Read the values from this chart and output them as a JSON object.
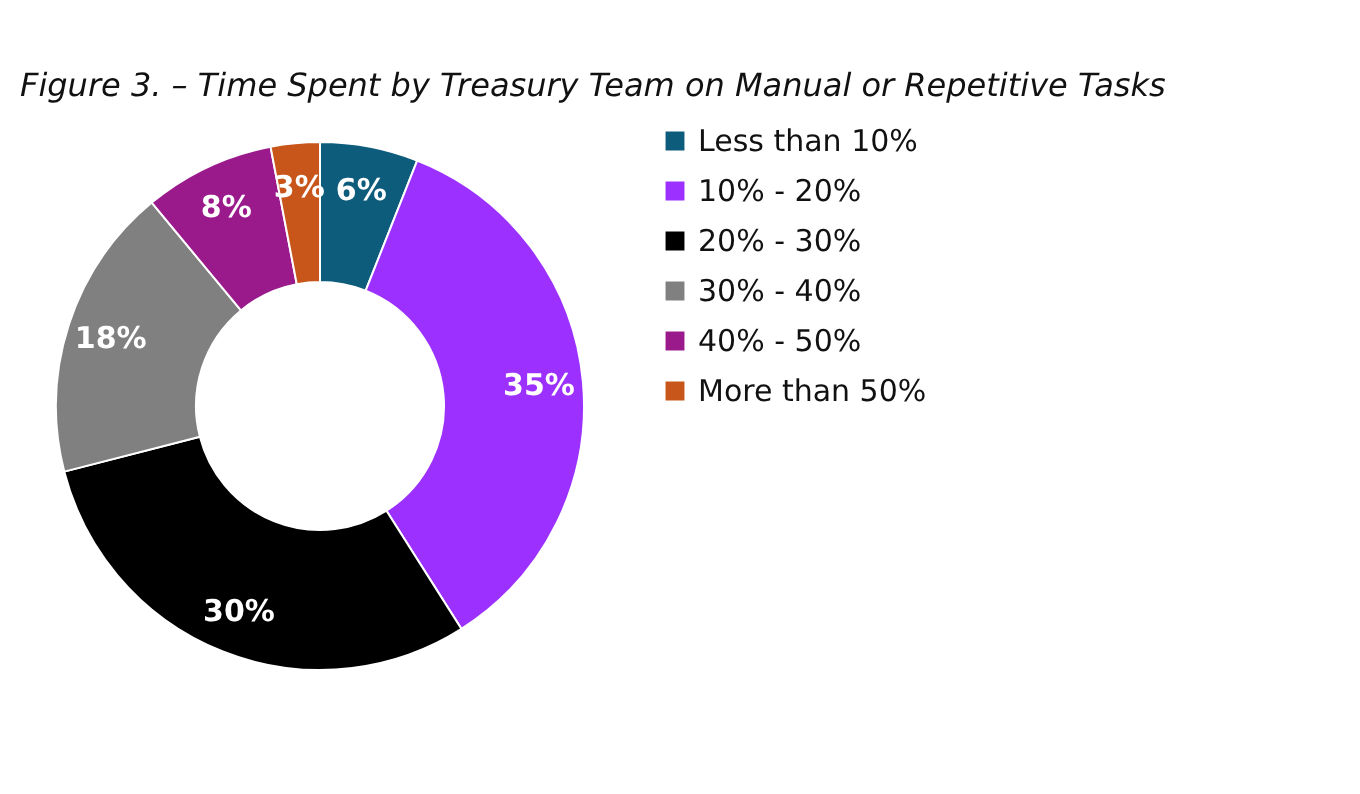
{
  "chart_data": {
    "type": "donut",
    "title": "Figure 3. – Time Spent by Treasury Team on Manual or Repetitive Tasks",
    "categories": [
      "Less than 10%",
      "10% - 20%",
      "20% - 30%",
      "30% - 40%",
      "40% - 50%",
      "More than 50%"
    ],
    "values": [
      6,
      35,
      30,
      18,
      8,
      3
    ],
    "colors": [
      "#0e5c7c",
      "#9b30ff",
      "#000000",
      "#808080",
      "#9a1a8c",
      "#c8561a"
    ],
    "value_labels": [
      "6%",
      "35%",
      "30%",
      "18%",
      "8%",
      "3%"
    ],
    "legend": "right"
  }
}
